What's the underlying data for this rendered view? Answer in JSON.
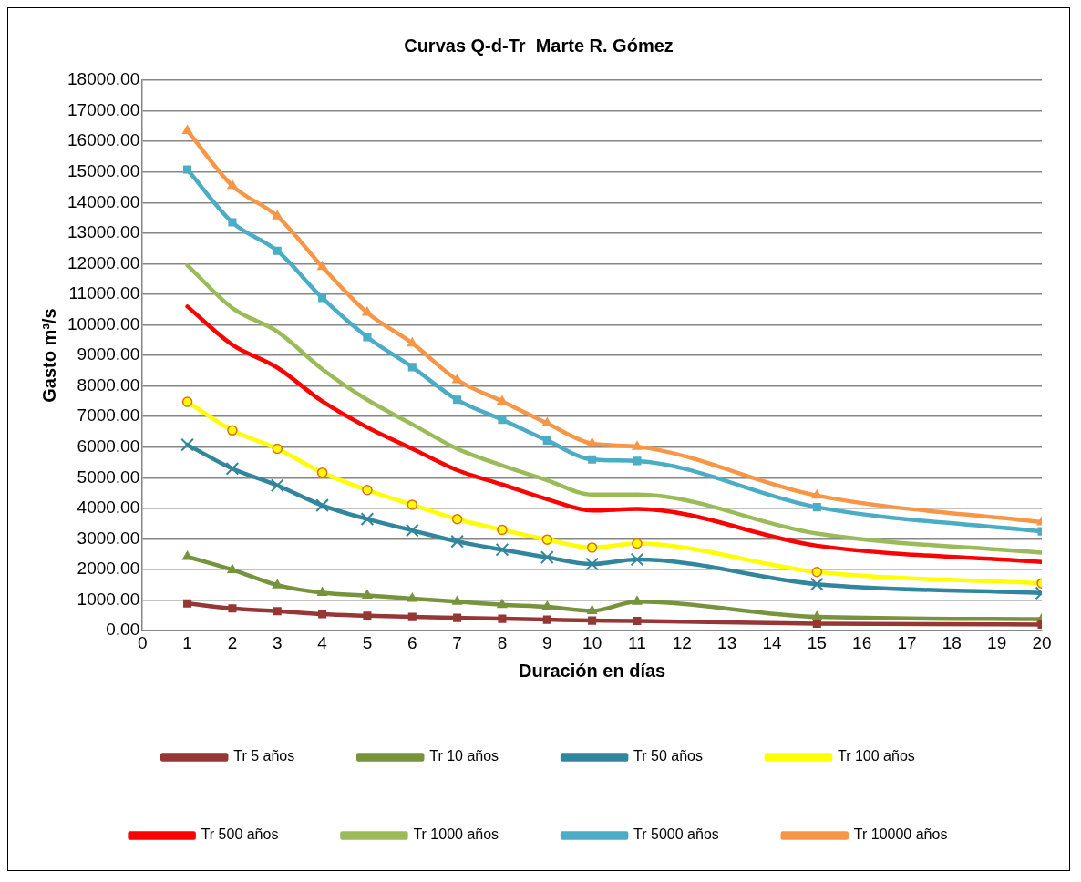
{
  "chart_data": {
    "type": "line",
    "title": "Curvas Q-d-Tr  Marte R. Gómez",
    "xlabel": "Duración en días",
    "ylabel": "Gasto m³/s",
    "x": [
      1,
      2,
      3,
      4,
      5,
      6,
      7,
      8,
      9,
      10,
      11,
      15,
      20
    ],
    "xlim": [
      0,
      20
    ],
    "xticks": [
      0,
      1,
      2,
      3,
      4,
      5,
      6,
      7,
      8,
      9,
      10,
      11,
      12,
      13,
      14,
      15,
      16,
      17,
      18,
      19,
      20
    ],
    "ylim": [
      0,
      18000
    ],
    "yticks": [
      {
        "value": 0,
        "label": "0.00"
      },
      {
        "value": 1000,
        "label": "1000.00"
      },
      {
        "value": 2000,
        "label": "2000.00"
      },
      {
        "value": 3000,
        "label": "3000.00"
      },
      {
        "value": 4000,
        "label": "4000.00"
      },
      {
        "value": 5000,
        "label": "5000.00"
      },
      {
        "value": 6000,
        "label": "6000.00"
      },
      {
        "value": 7000,
        "label": "7000.00"
      },
      {
        "value": 8000,
        "label": "8000.00"
      },
      {
        "value": 9000,
        "label": "9000.00"
      },
      {
        "value": 10000,
        "label": "10000.00"
      },
      {
        "value": 11000,
        "label": "11000.00"
      },
      {
        "value": 12000,
        "label": "12000.00"
      },
      {
        "value": 13000,
        "label": "13000.00"
      },
      {
        "value": 14000,
        "label": "14000.00"
      },
      {
        "value": 15000,
        "label": "15000.00"
      },
      {
        "value": 16000,
        "label": "16000.00"
      },
      {
        "value": 17000,
        "label": "17000.00"
      },
      {
        "value": 18000,
        "label": "18000.00"
      }
    ],
    "grid": "y",
    "legend": "bottom",
    "series": [
      {
        "name": "Tr 5 años",
        "color": "#953735",
        "marker": "square",
        "values": [
          890,
          730,
          640,
          540,
          490,
          450,
          420,
          390,
          360,
          330,
          320,
          230,
          200
        ]
      },
      {
        "name": "Tr 10 años",
        "color": "#77933c",
        "marker": "triangle",
        "values": [
          2420,
          1990,
          1490,
          1240,
          1150,
          1050,
          950,
          850,
          780,
          650,
          950,
          450,
          380
        ]
      },
      {
        "name": "Tr 50 años",
        "color": "#31859c",
        "marker": "cross",
        "values": [
          6080,
          5300,
          4750,
          4100,
          3650,
          3280,
          2920,
          2650,
          2400,
          2180,
          2330,
          1520,
          1230
        ]
      },
      {
        "name": "Tr 100 años",
        "color": "#ffff00",
        "marker": "circle",
        "values": [
          7480,
          6550,
          5950,
          5170,
          4600,
          4120,
          3650,
          3300,
          2980,
          2720,
          2850,
          1920,
          1550
        ]
      },
      {
        "name": "Tr 500 años",
        "color": "#ff0000",
        "marker": "none",
        "values": [
          10600,
          9350,
          8600,
          7500,
          6650,
          5950,
          5250,
          4780,
          4300,
          3930,
          3980,
          2780,
          2250
        ]
      },
      {
        "name": "Tr 1000 años",
        "color": "#9bbb59",
        "marker": "none",
        "values": [
          11950,
          10550,
          9780,
          8550,
          7550,
          6750,
          5950,
          5400,
          4920,
          4450,
          4450,
          3180,
          2550
        ]
      },
      {
        "name": "Tr 5000 años",
        "color": "#4bacc6",
        "marker": "square",
        "values": [
          15080,
          13350,
          12420,
          10880,
          9600,
          8620,
          7550,
          6900,
          6220,
          5600,
          5550,
          4040,
          3250
        ]
      },
      {
        "name": "Tr 10000 años",
        "color": "#f79646",
        "marker": "triangle",
        "values": [
          16350,
          14550,
          13550,
          11900,
          10400,
          9400,
          8200,
          7500,
          6780,
          6120,
          6020,
          4420,
          3550
        ]
      }
    ]
  }
}
